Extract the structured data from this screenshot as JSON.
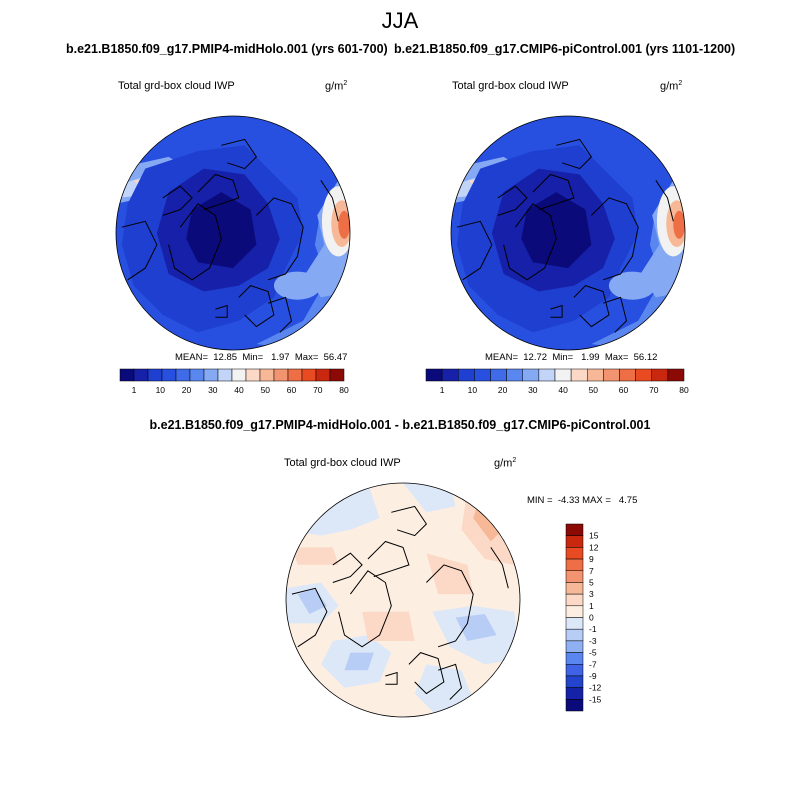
{
  "page": {
    "season": "JJA"
  },
  "panels": [
    {
      "case_title": "b.e21.B1850.f09_g17.PMIP4-midHolo.001 (yrs 601-700)",
      "variable": "Total grd-box cloud IWP",
      "units_base": "g/m",
      "units_exp": "2",
      "stats": "MEAN=  12.85  Min=   1.97  Max=  56.47"
    },
    {
      "case_title": "b.e21.B1850.f09_g17.CMIP6-piControl.001 (yrs 1101-1200)",
      "variable": "Total grd-box cloud IWP",
      "units_base": "g/m",
      "units_exp": "2",
      "stats": "MEAN=  12.72  Min=   1.99  Max=  56.12"
    },
    {
      "case_title": "b.e21.B1850.f09_g17.PMIP4-midHolo.001 - b.e21.B1850.f09_g17.CMIP6-piControl.001",
      "variable": "Total grd-box cloud IWP",
      "units_base": "g/m",
      "units_exp": "2",
      "stats": "MIN =  -4.33 MAX =   4.75"
    }
  ],
  "chart_data": [
    {
      "type": "heatmap",
      "projection": "north-polar-stereographic",
      "title": "b.e21.B1850.f09_g17.PMIP4-midHolo.001 (yrs 601-700)",
      "variable": "Total grd-box cloud IWP",
      "units": "g/m^2",
      "mean": 12.85,
      "min": 1.97,
      "max": 56.47,
      "colorbar": {
        "orientation": "horizontal",
        "tick_labels": [
          "1",
          "10",
          "20",
          "30",
          "40",
          "50",
          "60",
          "70",
          "80"
        ],
        "colors": [
          "#0a0a7a",
          "#1620a8",
          "#1f3fd0",
          "#2750e0",
          "#3f6ae8",
          "#5a86f0",
          "#86a9f4",
          "#c2d4f7",
          "#f2f2f2",
          "#fbd9c6",
          "#f7b898",
          "#f39470",
          "#ee6e45",
          "#e84a22",
          "#c9280e",
          "#8c0a05"
        ]
      },
      "regions": [
        {
          "name": "arctic-core",
          "approx_value": 2
        },
        {
          "name": "outer-ocean",
          "approx_value": 10
        },
        {
          "name": "mid-latitude-band",
          "approx_value": 25
        },
        {
          "name": "pacific-maximum",
          "approx_value": 56
        }
      ]
    },
    {
      "type": "heatmap",
      "projection": "north-polar-stereographic",
      "title": "b.e21.B1850.f09_g17.CMIP6-piControl.001 (yrs 1101-1200)",
      "variable": "Total grd-box cloud IWP",
      "units": "g/m^2",
      "mean": 12.72,
      "min": 1.99,
      "max": 56.12,
      "colorbar": {
        "orientation": "horizontal",
        "tick_labels": [
          "1",
          "10",
          "20",
          "30",
          "40",
          "50",
          "60",
          "70",
          "80"
        ],
        "colors": [
          "#0a0a7a",
          "#1620a8",
          "#1f3fd0",
          "#2750e0",
          "#3f6ae8",
          "#5a86f0",
          "#86a9f4",
          "#c2d4f7",
          "#f2f2f2",
          "#fbd9c6",
          "#f7b898",
          "#f39470",
          "#ee6e45",
          "#e84a22",
          "#c9280e",
          "#8c0a05"
        ]
      },
      "regions": [
        {
          "name": "arctic-core",
          "approx_value": 2
        },
        {
          "name": "outer-ocean",
          "approx_value": 10
        },
        {
          "name": "mid-latitude-band",
          "approx_value": 25
        },
        {
          "name": "pacific-maximum",
          "approx_value": 56
        }
      ]
    },
    {
      "type": "heatmap",
      "projection": "north-polar-stereographic",
      "title": "b.e21.B1850.f09_g17.PMIP4-midHolo.001 - b.e21.B1850.f09_g17.CMIP6-piControl.001",
      "variable": "Total grd-box cloud IWP",
      "units": "g/m^2",
      "min": -4.33,
      "max": 4.75,
      "colorbar": {
        "orientation": "vertical",
        "tick_labels": [
          "15",
          "12",
          "9",
          "7",
          "5",
          "3",
          "1",
          "0",
          "-1",
          "-3",
          "-5",
          "-7",
          "-9",
          "-12",
          "-15"
        ],
        "colors": [
          "#8c0a05",
          "#c9280e",
          "#e84a22",
          "#ee6e45",
          "#f39470",
          "#f7b898",
          "#fbd9c6",
          "#fdeee2",
          "#dce8f8",
          "#b8cdf5",
          "#8fb0f2",
          "#5a86f0",
          "#3f62e6",
          "#2344cc",
          "#1522a8",
          "#0a0a7a"
        ]
      },
      "regions": [
        {
          "name": "arctic-ocean",
          "approx_value": 1
        },
        {
          "name": "north-atlantic",
          "approx_value": -2
        },
        {
          "name": "siberia-east",
          "approx_value": 3
        },
        {
          "name": "north-pacific",
          "approx_value": -2
        }
      ]
    }
  ]
}
